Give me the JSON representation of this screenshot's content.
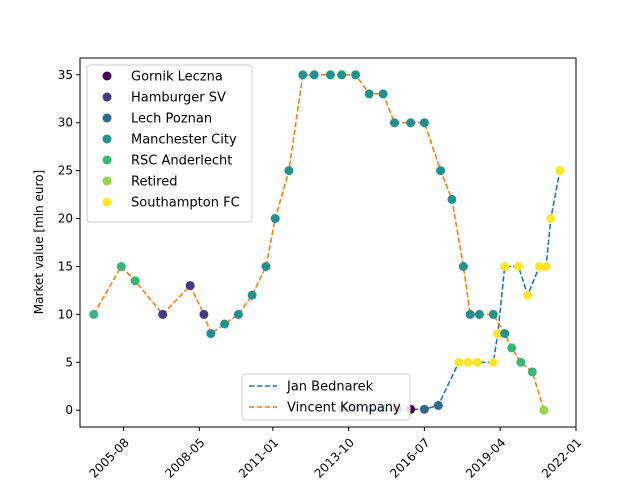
{
  "chart_data": {
    "type": "line+scatter",
    "title": "",
    "xlabel": "",
    "ylabel": "Market value [mln euro]",
    "xlim": [
      "2004-01-01",
      "2022-01-01"
    ],
    "ylim": [
      -1.75,
      36.75
    ],
    "x_ticks": [
      {
        "date": "2005-08-01",
        "label": "2005-08"
      },
      {
        "date": "2008-05-01",
        "label": "2008-05"
      },
      {
        "date": "2011-01-01",
        "label": "2011-01"
      },
      {
        "date": "2013-10-01",
        "label": "2013-10"
      },
      {
        "date": "2016-07-01",
        "label": "2016-07"
      },
      {
        "date": "2019-04-01",
        "label": "2019-04"
      },
      {
        "date": "2022-01-01",
        "label": "2022-01"
      }
    ],
    "y_ticks": [
      0,
      5,
      10,
      15,
      20,
      25,
      30,
      35
    ],
    "grid": false,
    "clubs": [
      {
        "name": "Gornik Leczna",
        "color": "#440154"
      },
      {
        "name": "Hamburger SV",
        "color": "#443983"
      },
      {
        "name": "Lech Poznan",
        "color": "#31688e"
      },
      {
        "name": "Manchester City",
        "color": "#21918c"
      },
      {
        "name": "RSC Anderlecht",
        "color": "#35b779"
      },
      {
        "name": "Retired",
        "color": "#90d743"
      },
      {
        "name": "Southampton FC",
        "color": "#fde725"
      }
    ],
    "series": [
      {
        "name": "Jan Bednarek",
        "color": "#1f77b4",
        "points": [
          {
            "date": "2013-07-01",
            "value": 0.2,
            "club": "Lech Poznan"
          },
          {
            "date": "2014-01-01",
            "value": 0.2,
            "club": "Lech Poznan"
          },
          {
            "date": "2014-07-01",
            "value": 0.1,
            "club": "Lech Poznan"
          },
          {
            "date": "2015-01-01",
            "value": 0.1,
            "club": "Lech Poznan"
          },
          {
            "date": "2015-07-01",
            "value": 0.1,
            "club": "Gornik Leczna"
          },
          {
            "date": "2016-01-01",
            "value": 0.1,
            "club": "Gornik Leczna"
          },
          {
            "date": "2016-07-01",
            "value": 0.1,
            "club": "Lech Poznan"
          },
          {
            "date": "2017-01-01",
            "value": 0.5,
            "club": "Lech Poznan"
          },
          {
            "date": "2017-10-01",
            "value": 5,
            "club": "Southampton FC"
          },
          {
            "date": "2018-02-01",
            "value": 5,
            "club": "Southampton FC"
          },
          {
            "date": "2018-06-01",
            "value": 5,
            "club": "Southampton FC"
          },
          {
            "date": "2019-01-01",
            "value": 5,
            "club": "Southampton FC"
          },
          {
            "date": "2019-03-01",
            "value": 8,
            "club": "Southampton FC"
          },
          {
            "date": "2019-06-01",
            "value": 15,
            "club": "Southampton FC"
          },
          {
            "date": "2019-12-01",
            "value": 15,
            "club": "Southampton FC"
          },
          {
            "date": "2020-04-01",
            "value": 12,
            "club": "Southampton FC"
          },
          {
            "date": "2020-09-01",
            "value": 15,
            "club": "Southampton FC"
          },
          {
            "date": "2020-12-01",
            "value": 15,
            "club": "Southampton FC"
          },
          {
            "date": "2021-02-01",
            "value": 20,
            "club": "Southampton FC"
          },
          {
            "date": "2021-06-01",
            "value": 25,
            "club": "Southampton FC"
          }
        ]
      },
      {
        "name": "Vincent Kompany",
        "color": "#ff7f0e",
        "points": [
          {
            "date": "2004-07-01",
            "value": 10,
            "club": "RSC Anderlecht"
          },
          {
            "date": "2005-07-01",
            "value": 15,
            "club": "RSC Anderlecht"
          },
          {
            "date": "2006-01-01",
            "value": 13.5,
            "club": "RSC Anderlecht"
          },
          {
            "date": "2007-01-01",
            "value": 10,
            "club": "Hamburger SV"
          },
          {
            "date": "2008-01-01",
            "value": 13,
            "club": "Hamburger SV"
          },
          {
            "date": "2008-07-01",
            "value": 10,
            "club": "Hamburger SV"
          },
          {
            "date": "2008-10-01",
            "value": 8,
            "club": "Manchester City"
          },
          {
            "date": "2009-04-01",
            "value": 9,
            "club": "Manchester City"
          },
          {
            "date": "2009-10-01",
            "value": 10,
            "club": "Manchester City"
          },
          {
            "date": "2010-04-01",
            "value": 12,
            "club": "Manchester City"
          },
          {
            "date": "2010-10-01",
            "value": 15,
            "club": "Manchester City"
          },
          {
            "date": "2011-02-01",
            "value": 20,
            "club": "Manchester City"
          },
          {
            "date": "2011-08-01",
            "value": 25,
            "club": "Manchester City"
          },
          {
            "date": "2012-02-01",
            "value": 35,
            "club": "Manchester City"
          },
          {
            "date": "2012-07-01",
            "value": 35,
            "club": "Manchester City"
          },
          {
            "date": "2013-02-01",
            "value": 35,
            "club": "Manchester City"
          },
          {
            "date": "2013-07-01",
            "value": 35,
            "club": "Manchester City"
          },
          {
            "date": "2014-01-01",
            "value": 35,
            "club": "Manchester City"
          },
          {
            "date": "2014-07-01",
            "value": 33,
            "club": "Manchester City"
          },
          {
            "date": "2015-01-01",
            "value": 33,
            "club": "Manchester City"
          },
          {
            "date": "2015-06-01",
            "value": 30,
            "club": "Manchester City"
          },
          {
            "date": "2016-01-01",
            "value": 30,
            "club": "Manchester City"
          },
          {
            "date": "2016-07-01",
            "value": 30,
            "club": "Manchester City"
          },
          {
            "date": "2017-02-01",
            "value": 25,
            "club": "Manchester City"
          },
          {
            "date": "2017-07-01",
            "value": 22,
            "club": "Manchester City"
          },
          {
            "date": "2017-12-01",
            "value": 15,
            "club": "Manchester City"
          },
          {
            "date": "2018-03-01",
            "value": 10,
            "club": "Manchester City"
          },
          {
            "date": "2018-07-01",
            "value": 10,
            "club": "Manchester City"
          },
          {
            "date": "2019-01-01",
            "value": 10,
            "club": "Manchester City"
          },
          {
            "date": "2019-06-01",
            "value": 8,
            "club": "Manchester City"
          },
          {
            "date": "2019-09-01",
            "value": 6.5,
            "club": "RSC Anderlecht"
          },
          {
            "date": "2020-01-01",
            "value": 5,
            "club": "RSC Anderlecht"
          },
          {
            "date": "2020-06-01",
            "value": 4,
            "club": "RSC Anderlecht"
          },
          {
            "date": "2020-11-01",
            "value": 0,
            "club": "Retired"
          }
        ]
      }
    ]
  }
}
